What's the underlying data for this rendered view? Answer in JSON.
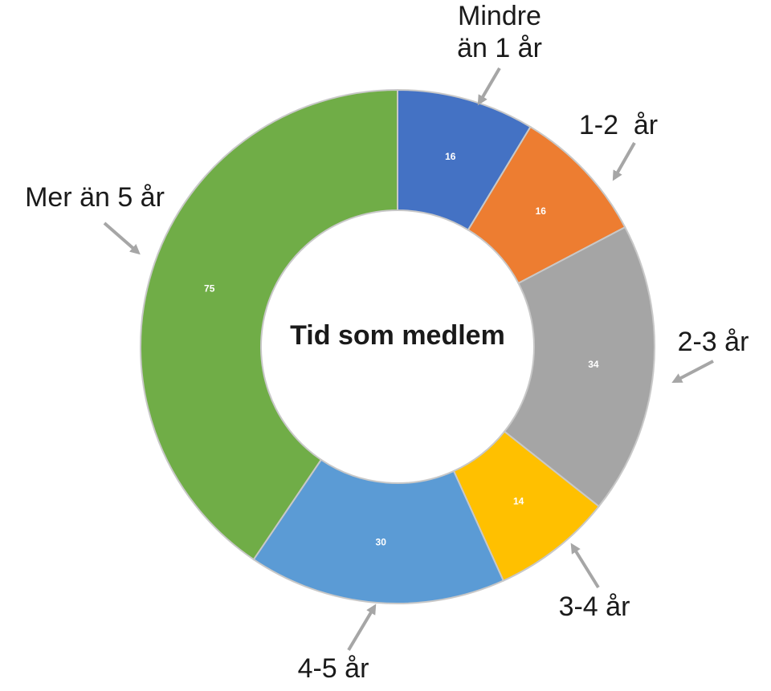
{
  "chart_data": {
    "type": "donut",
    "title": "Tid som medlem",
    "categories": [
      "Mindre än 1 år",
      "1-2  år",
      "2-3 år",
      "3-4 år",
      "4-5 år",
      "Mer än 5 år"
    ],
    "values": [
      16,
      16,
      34,
      14,
      30,
      75
    ],
    "colors": [
      "#4472c4",
      "#ed7d31",
      "#a5a5a5",
      "#ffc000",
      "#5b9bd5",
      "#70ad47"
    ]
  }
}
